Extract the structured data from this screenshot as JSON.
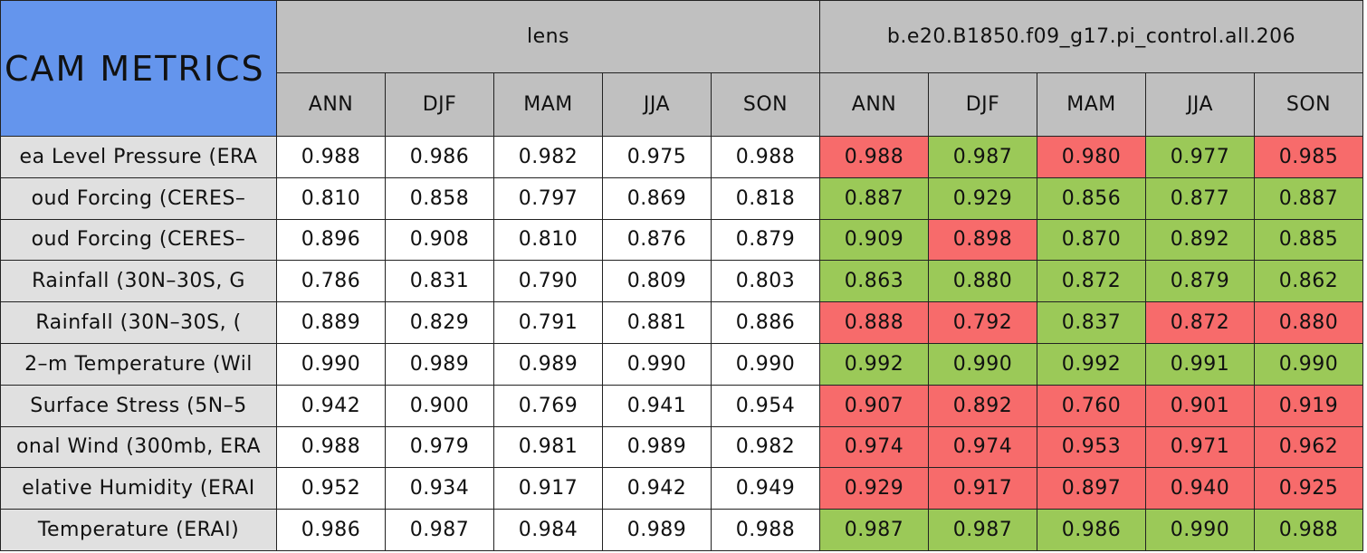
{
  "header": {
    "corner": "CAM METRICS",
    "groups": [
      "lens",
      "b.e20.B1850.f09_g17.pi_control.all.206"
    ],
    "seasons": [
      "ANN",
      "DJF",
      "MAM",
      "JJA",
      "SON",
      "ANN",
      "DJF",
      "MAM",
      "JJA",
      "SON"
    ]
  },
  "table": {
    "rows": [
      {
        "label": "ea Level Pressure (ERA",
        "values": [
          "0.988",
          "0.986",
          "0.982",
          "0.975",
          "0.988",
          "0.988",
          "0.987",
          "0.980",
          "0.977",
          "0.985"
        ],
        "colors": [
          "#f76b6b",
          "#9bc958",
          "#f76b6b",
          "#9bc958",
          "#f76b6b"
        ]
      },
      {
        "label": "oud Forcing (CERES–",
        "values": [
          "0.810",
          "0.858",
          "0.797",
          "0.869",
          "0.818",
          "0.887",
          "0.929",
          "0.856",
          "0.877",
          "0.887"
        ],
        "colors": [
          "#9bc958",
          "#9bc958",
          "#9bc958",
          "#9bc958",
          "#9bc958"
        ]
      },
      {
        "label": "oud Forcing (CERES–",
        "values": [
          "0.896",
          "0.908",
          "0.810",
          "0.876",
          "0.879",
          "0.909",
          "0.898",
          "0.870",
          "0.892",
          "0.885"
        ],
        "colors": [
          "#9bc958",
          "#f76b6b",
          "#9bc958",
          "#9bc958",
          "#9bc958"
        ]
      },
      {
        "label": "Rainfall (30N–30S, G",
        "values": [
          "0.786",
          "0.831",
          "0.790",
          "0.809",
          "0.803",
          "0.863",
          "0.880",
          "0.872",
          "0.879",
          "0.862"
        ],
        "colors": [
          "#9bc958",
          "#9bc958",
          "#9bc958",
          "#9bc958",
          "#9bc958"
        ]
      },
      {
        "label": "Rainfall (30N–30S, (",
        "values": [
          "0.889",
          "0.829",
          "0.791",
          "0.881",
          "0.886",
          "0.888",
          "0.792",
          "0.837",
          "0.872",
          "0.880"
        ],
        "colors": [
          "#f76b6b",
          "#f76b6b",
          "#9bc958",
          "#f76b6b",
          "#f76b6b"
        ]
      },
      {
        "label": "2–m Temperature (Wil",
        "values": [
          "0.990",
          "0.989",
          "0.989",
          "0.990",
          "0.990",
          "0.992",
          "0.990",
          "0.992",
          "0.991",
          "0.990"
        ],
        "colors": [
          "#9bc958",
          "#9bc958",
          "#9bc958",
          "#9bc958",
          "#9bc958"
        ]
      },
      {
        "label": "Surface Stress (5N–5",
        "values": [
          "0.942",
          "0.900",
          "0.769",
          "0.941",
          "0.954",
          "0.907",
          "0.892",
          "0.760",
          "0.901",
          "0.919"
        ],
        "colors": [
          "#f76b6b",
          "#f76b6b",
          "#f76b6b",
          "#f76b6b",
          "#f76b6b"
        ]
      },
      {
        "label": "onal Wind (300mb, ERA",
        "values": [
          "0.988",
          "0.979",
          "0.981",
          "0.989",
          "0.982",
          "0.974",
          "0.974",
          "0.953",
          "0.971",
          "0.962"
        ],
        "colors": [
          "#f76b6b",
          "#f76b6b",
          "#f76b6b",
          "#f76b6b",
          "#f76b6b"
        ]
      },
      {
        "label": "elative Humidity (ERAI",
        "values": [
          "0.952",
          "0.934",
          "0.917",
          "0.942",
          "0.949",
          "0.929",
          "0.917",
          "0.897",
          "0.940",
          "0.925"
        ],
        "colors": [
          "#f76b6b",
          "#f76b6b",
          "#f76b6b",
          "#f76b6b",
          "#f76b6b"
        ]
      },
      {
        "label": "Temperature (ERAI)",
        "values": [
          "0.986",
          "0.987",
          "0.984",
          "0.989",
          "0.988",
          "0.987",
          "0.987",
          "0.986",
          "0.990",
          "0.988"
        ],
        "colors": [
          "#9bc958",
          "#9bc958",
          "#9bc958",
          "#9bc958",
          "#9bc958"
        ]
      }
    ]
  }
}
